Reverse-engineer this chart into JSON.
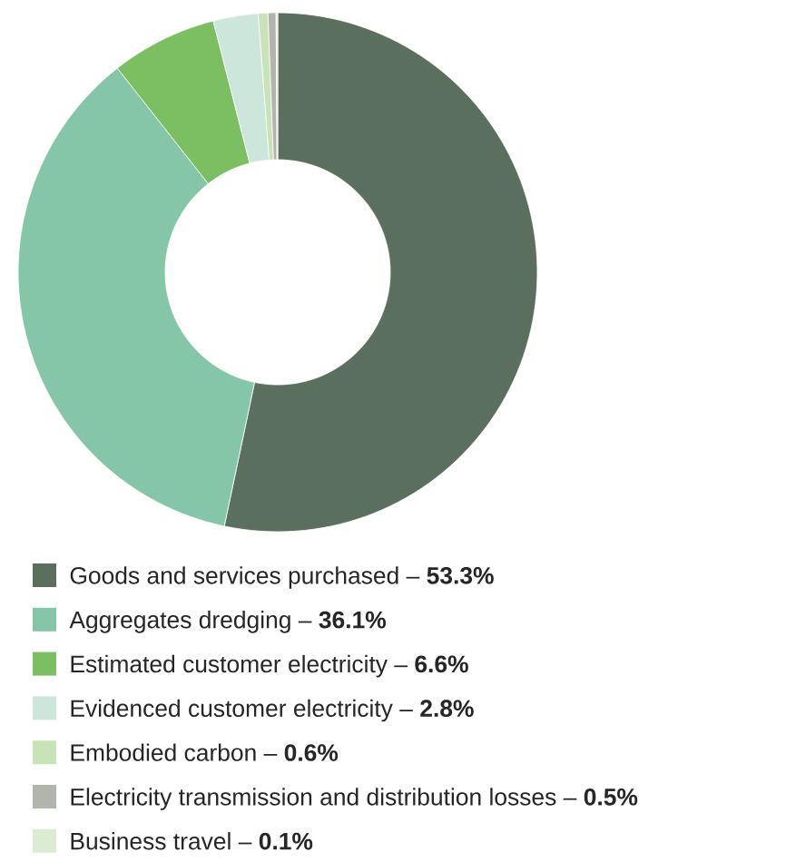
{
  "chart_data": {
    "type": "donut",
    "categories": [
      "Goods and services purchased – **53.3%**",
      "Aggregates dredging – **36.1%**",
      "Estimated customer electricity – **6.6%**",
      "Evidenced customer electricity – **2.8%**",
      "Embodied carbon – **0.6%**",
      "Electricity transmission and distribution losses – **0.5%**",
      "Business travel – **0.1%**"
    ],
    "values": [
      53.3,
      36.1,
      6.6,
      2.8,
      0.6,
      0.5,
      0.1
    ],
    "colors": [
      "#5b6f5e",
      "#86c6a8",
      "#7cbf62",
      "#cde6dc",
      "#c8e3b8",
      "#b1b5ae",
      "#dcecd3"
    ],
    "legend": "bottom"
  }
}
